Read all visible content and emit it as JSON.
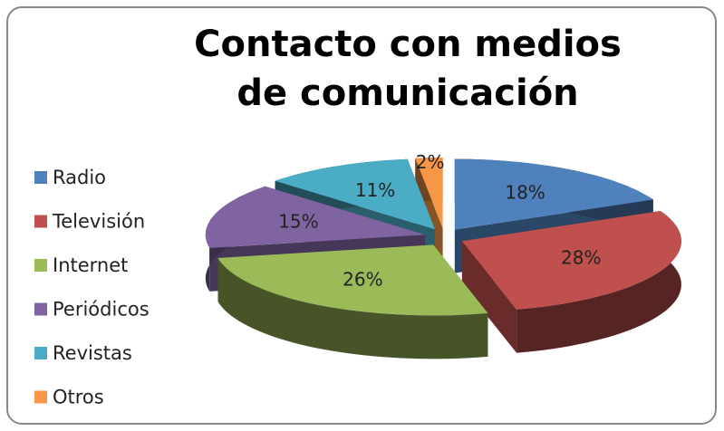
{
  "chart_data": {
    "type": "pie",
    "title": "Contacto con medios de comunicación",
    "categories": [
      "Radio",
      "Televisión",
      "Internet",
      "Periódicos",
      "Revistas",
      "Otros"
    ],
    "values": [
      18,
      28,
      26,
      15,
      11,
      2
    ],
    "value_labels": [
      "18%",
      "28%",
      "26%",
      "15%",
      "11%",
      "2%"
    ],
    "colors": [
      "#4f81bd",
      "#c0504d",
      "#9bbb59",
      "#8064a2",
      "#4bacc6",
      "#f79646"
    ],
    "legend": "left"
  }
}
